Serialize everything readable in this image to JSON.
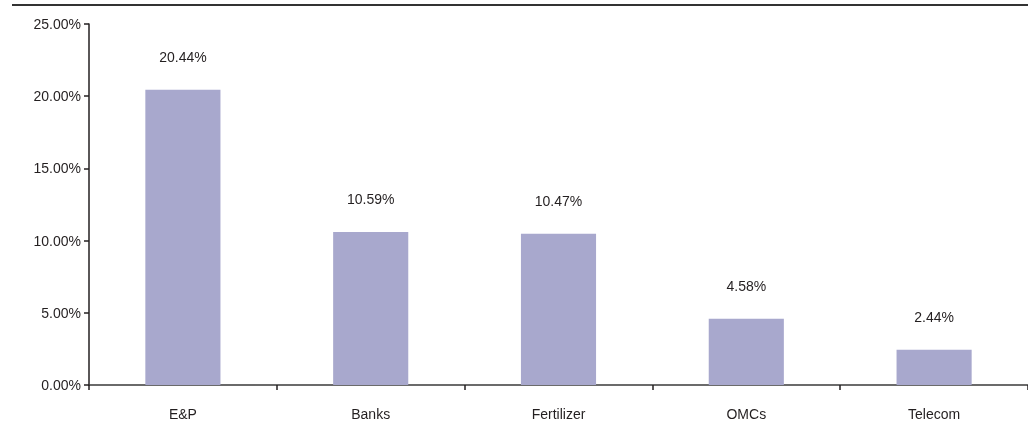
{
  "chart_data": {
    "type": "bar",
    "categories": [
      "E&P",
      "Banks",
      "Fertilizer",
      "OMCs",
      "Telecom"
    ],
    "values": [
      20.44,
      10.59,
      10.47,
      4.58,
      2.44
    ],
    "value_labels": [
      "20.44%",
      "10.59%",
      "10.47%",
      "4.58%",
      "2.44%"
    ],
    "color": "#a8a8cd",
    "ylim": [
      0,
      25
    ],
    "yticks": [
      {
        "value": 0,
        "label": "0.00%"
      },
      {
        "value": 5,
        "label": "5.00%"
      },
      {
        "value": 10,
        "label": "10.00%"
      },
      {
        "value": 15,
        "label": "15.00%"
      },
      {
        "value": 20,
        "label": "20.00%"
      },
      {
        "value": 25,
        "label": "25.00%"
      }
    ]
  }
}
